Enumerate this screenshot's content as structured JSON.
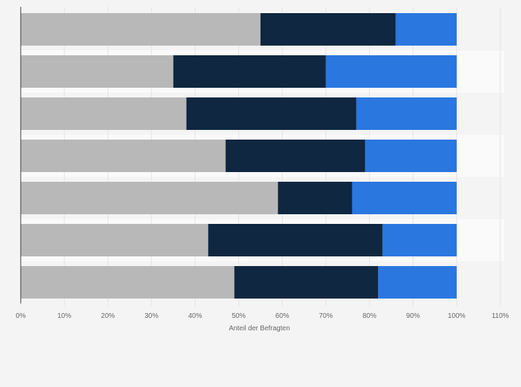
{
  "chart_data": {
    "type": "bar",
    "orientation": "horizontal",
    "stacked": true,
    "xlabel": "Anteil der Befragten",
    "xlim": [
      0,
      110
    ],
    "x_ticks": [
      "0%",
      "10%",
      "20%",
      "30%",
      "40%",
      "50%",
      "60%",
      "70%",
      "80%",
      "90%",
      "100%",
      "110%"
    ],
    "grid": true,
    "series": [
      {
        "color": "#b8b8b8",
        "values": [
          55,
          35,
          38,
          47,
          59,
          43,
          49
        ]
      },
      {
        "color": "#0f2740",
        "values": [
          31,
          35,
          39,
          32,
          17,
          40,
          33
        ]
      },
      {
        "color": "#2a77e0",
        "values": [
          14,
          30,
          23,
          21,
          24,
          17,
          18
        ]
      }
    ]
  }
}
